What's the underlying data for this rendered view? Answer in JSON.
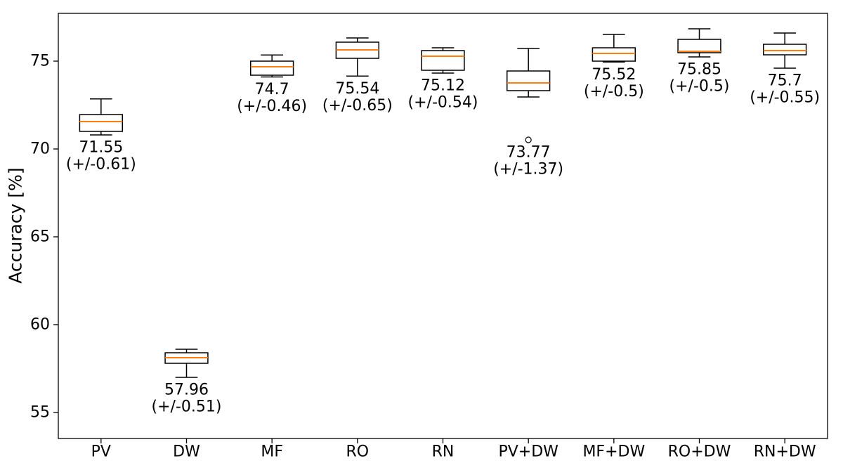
{
  "chart_data": {
    "type": "boxplot",
    "title": "",
    "xlabel": "",
    "ylabel": "Accuracy [%]",
    "ylim": [
      53.52,
      77.72
    ],
    "yticks": [
      55,
      60,
      65,
      70,
      75
    ],
    "grid": false,
    "legend": false,
    "median_color": "#ff7f0e",
    "box_color": "#000000",
    "background_color": "#ffffff",
    "categories": [
      "PV",
      "DW",
      "MF",
      "RO",
      "RN",
      "PV+DW",
      "MF+DW",
      "RO+DW",
      "RN+DW"
    ],
    "boxes": [
      {
        "category": "PV",
        "whisker_low": 70.8,
        "q1": 71.0,
        "median": 71.56,
        "q3": 71.96,
        "whisker_high": 72.85,
        "outliers": [],
        "label_mean": "71.55",
        "label_std": "(+/-0.61)"
      },
      {
        "category": "DW",
        "whisker_low": 57.0,
        "q1": 57.8,
        "median": 58.12,
        "q3": 58.4,
        "whisker_high": 58.6,
        "outliers": [],
        "label_mean": "57.96",
        "label_std": "(+/-0.51)"
      },
      {
        "category": "MF",
        "whisker_low": 74.1,
        "q1": 74.2,
        "median": 74.68,
        "q3": 75.0,
        "whisker_high": 75.35,
        "outliers": [],
        "label_mean": "74.7",
        "label_std": "(+/-0.46)"
      },
      {
        "category": "RO",
        "whisker_low": 74.15,
        "q1": 75.16,
        "median": 75.64,
        "q3": 76.08,
        "whisker_high": 76.32,
        "outliers": [],
        "label_mean": "75.54",
        "label_std": "(+/-0.65)"
      },
      {
        "category": "RN",
        "whisker_low": 74.32,
        "q1": 74.48,
        "median": 75.28,
        "q3": 75.6,
        "whisker_high": 75.76,
        "outliers": [],
        "label_mean": "75.12",
        "label_std": "(+/-0.54)"
      },
      {
        "category": "PV+DW",
        "whisker_low": 72.96,
        "q1": 73.32,
        "median": 73.76,
        "q3": 74.44,
        "whisker_high": 75.72,
        "outliers": [
          70.52
        ],
        "label_mean": "73.77",
        "label_std": "(+/-1.37)"
      },
      {
        "category": "MF+DW",
        "whisker_low": 74.95,
        "q1": 75.0,
        "median": 75.44,
        "q3": 75.76,
        "whisker_high": 76.52,
        "outliers": [],
        "label_mean": "75.52",
        "label_std": "(+/-0.5)"
      },
      {
        "category": "RO+DW",
        "whisker_low": 75.24,
        "q1": 75.48,
        "median": 75.56,
        "q3": 76.24,
        "whisker_high": 76.84,
        "outliers": [],
        "label_mean": "75.85",
        "label_std": "(+/-0.5)"
      },
      {
        "category": "RN+DW",
        "whisker_low": 74.6,
        "q1": 75.36,
        "median": 75.6,
        "q3": 75.96,
        "whisker_high": 76.6,
        "outliers": [],
        "label_mean": "75.7",
        "label_std": "(+/-0.55)"
      }
    ]
  }
}
